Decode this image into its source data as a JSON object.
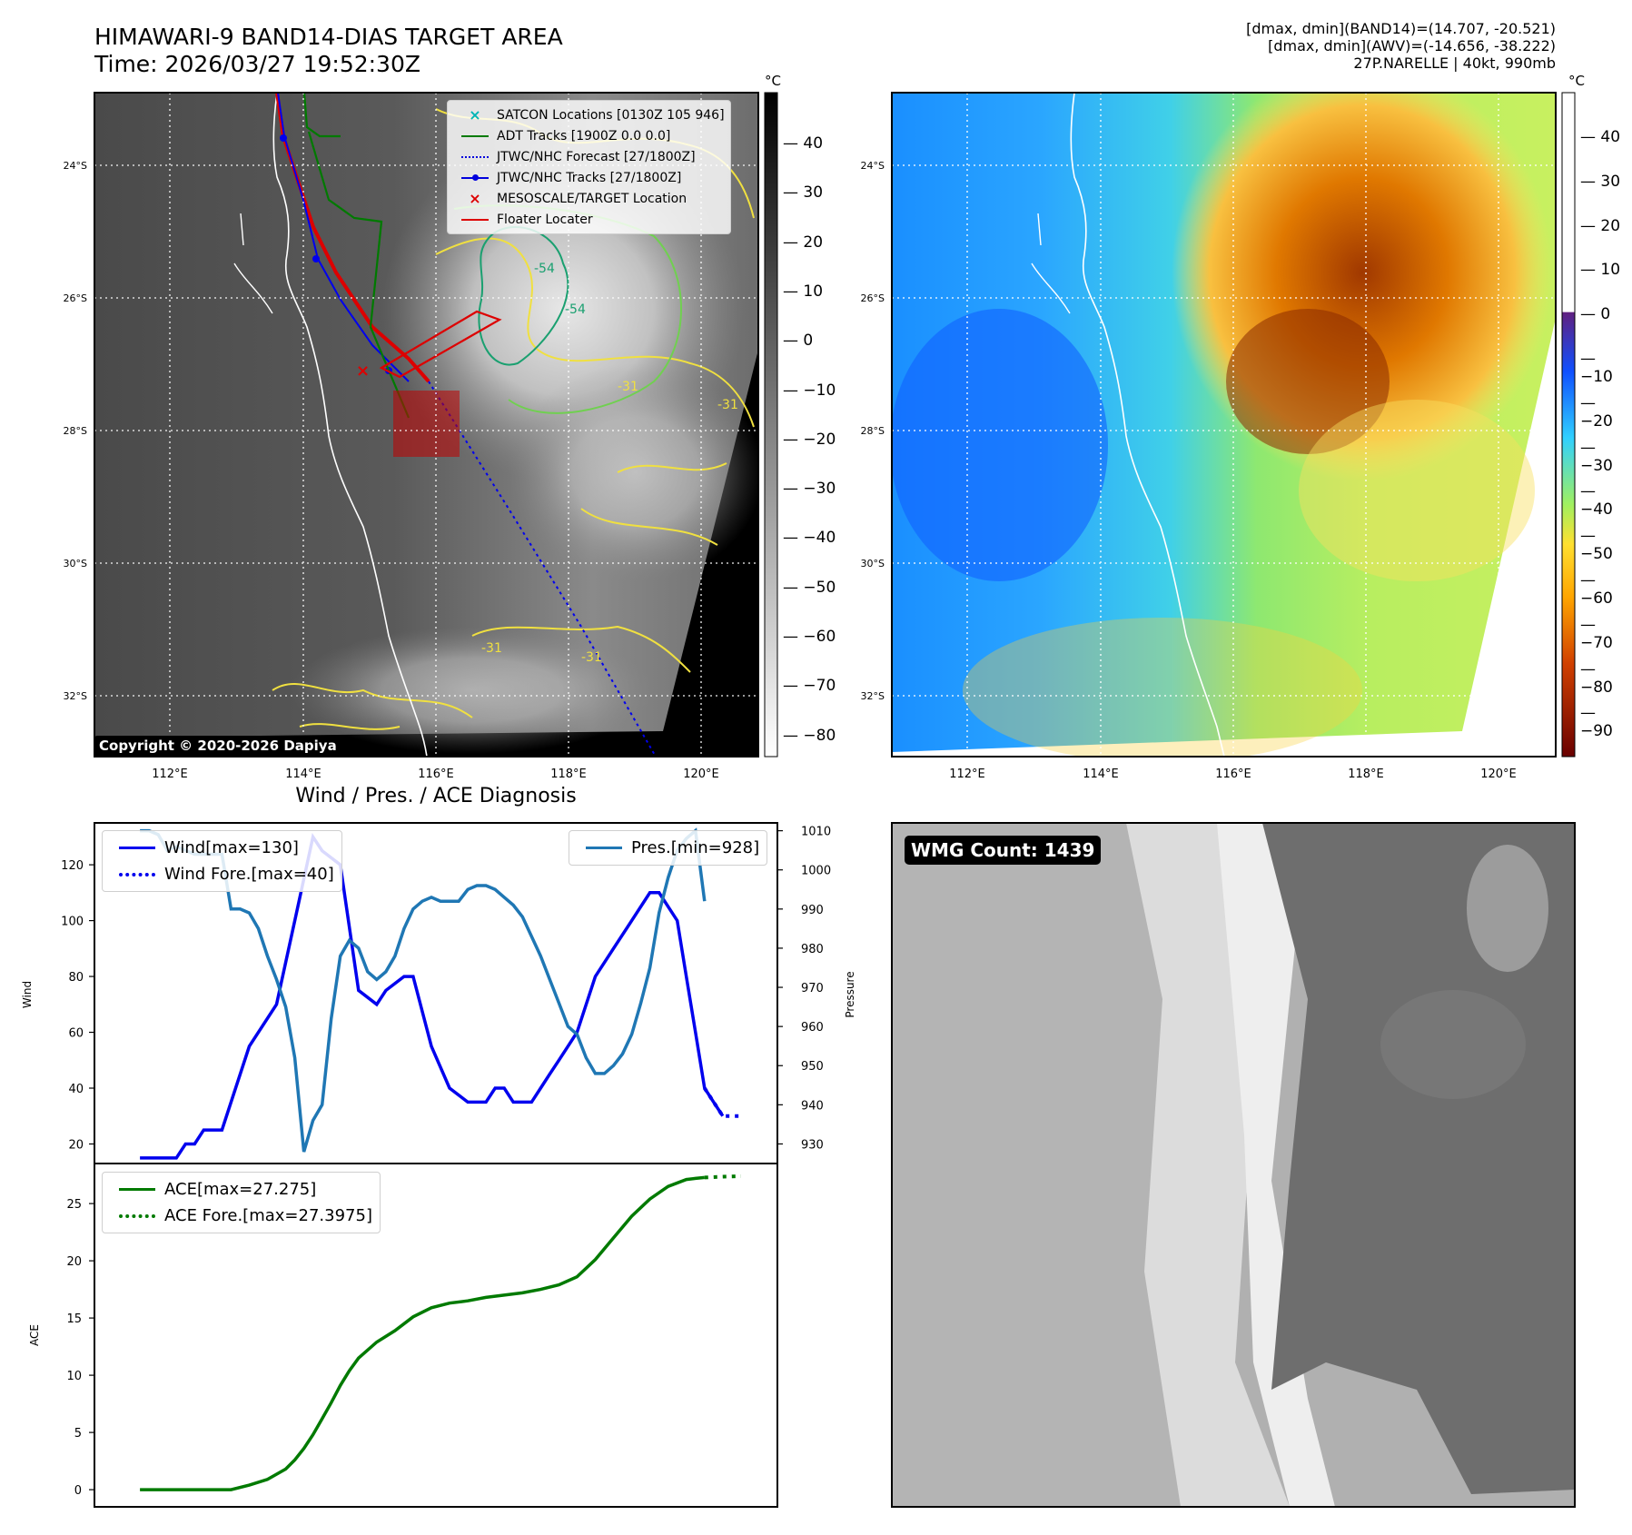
{
  "header": {
    "title_line1": "HIMAWARI-9 BAND14-DIAS TARGET AREA",
    "title_line2": "Time: 2026/03/27 19:52:30Z",
    "stats_line1": "[dmax, dmin](BAND14)=(14.707, -20.521)",
    "stats_line2": "[dmax, dmin](AWV)=(-14.656, -38.222)",
    "stats_line3": "27P.NARELLE | 40kt, 990mb"
  },
  "map_axes": {
    "lat_ticks": [
      "24°S",
      "26°S",
      "28°S",
      "30°S",
      "32°S"
    ],
    "lon_ticks": [
      "112°E",
      "114°E",
      "116°E",
      "118°E",
      "120°E"
    ]
  },
  "colorbar_ir": {
    "unit": "°C",
    "ticks": [
      "40",
      "30",
      "20",
      "10",
      "0",
      "−10",
      "−20",
      "−30",
      "−40",
      "−50",
      "−60",
      "−70",
      "−80"
    ]
  },
  "colorbar_color": {
    "unit": "°C",
    "ticks": [
      "40",
      "30",
      "20",
      "10",
      "0",
      "−10",
      "−20",
      "−30",
      "−40",
      "−50",
      "−60",
      "−70",
      "−80",
      "−90"
    ],
    "colors": [
      "#7a0000",
      "#b03000",
      "#e06000",
      "#ffa500",
      "#ffe030",
      "#90ee60",
      "#30d0ff",
      "#1060ff",
      "#6030a0"
    ]
  },
  "legend_map": {
    "items": [
      {
        "label": "SATCON Locations [0130Z 105 946]",
        "color": "#00b5b5",
        "marker": "x"
      },
      {
        "label": "ADT Tracks [1900Z 0.0 0.0]",
        "color": "#007a00",
        "marker": "line"
      },
      {
        "label": "JTWC/NHC Forecast [27/1800Z]",
        "color": "#0000dd",
        "marker": "dotted"
      },
      {
        "label": "JTWC/NHC Tracks [27/1800Z]",
        "color": "#0000dd",
        "marker": "line-dot"
      },
      {
        "label": "MESOSCALE/TARGET Location",
        "color": "#dd0000",
        "marker": "x"
      },
      {
        "label": "Floater Locater",
        "color": "#dd0000",
        "marker": "line"
      }
    ]
  },
  "copyright": "Copyright © 2020-2026 Dapiya",
  "contour_labels": [
    "-54",
    "-54",
    "-31",
    "-31",
    "-31",
    "-31"
  ],
  "diag": {
    "title": "Wind / Pres. / ACE Diagnosis",
    "wind_ylabel": "Wind",
    "pres_ylabel": "Pressure",
    "ace_ylabel": "ACE",
    "legend_wind": "Wind[max=130]",
    "legend_wind_fore": "Wind Fore.[max=40]",
    "legend_pres": "Pres.[min=928]",
    "legend_ace": "ACE[max=27.275]",
    "legend_ace_fore": "ACE Fore.[max=27.3975]"
  },
  "chart_data": [
    {
      "type": "line",
      "title": "Wind / Pres. / ACE Diagnosis",
      "ylabel": "Wind",
      "y2label": "Pressure",
      "ylim": [
        13,
        135
      ],
      "y2lim": [
        925,
        1012
      ],
      "yticks": [
        20,
        40,
        60,
        80,
        100,
        120
      ],
      "y2ticks": [
        930,
        940,
        950,
        960,
        970,
        980,
        990,
        1000,
        1010
      ],
      "series": [
        {
          "name": "Wind[max=130]",
          "axis": "left",
          "color": "#0000ee",
          "style": "solid",
          "x": [
            0,
            2,
            4,
            5,
            6,
            7,
            8,
            9,
            10,
            12,
            15,
            17,
            19,
            20,
            22,
            24,
            26,
            27,
            29,
            30,
            32,
            34,
            36,
            38,
            39,
            40,
            41,
            42,
            43,
            44,
            45,
            46,
            47,
            48,
            50,
            52,
            54,
            56,
            57,
            58,
            59,
            60,
            61,
            62,
            63,
            64
          ],
          "values": [
            15,
            15,
            15,
            20,
            20,
            25,
            25,
            25,
            35,
            55,
            70,
            100,
            130,
            125,
            120,
            75,
            70,
            75,
            80,
            80,
            55,
            40,
            35,
            35,
            40,
            40,
            35,
            35,
            35,
            40,
            45,
            50,
            55,
            60,
            80,
            90,
            100,
            110,
            110,
            105,
            100,
            80,
            60,
            40,
            35,
            30
          ]
        },
        {
          "name": "Wind Fore.[max=40]",
          "axis": "left",
          "color": "#0000ee",
          "style": "dotted",
          "x": [
            62,
            63,
            64,
            65,
            66
          ],
          "values": [
            40,
            35,
            30,
            30,
            30
          ]
        },
        {
          "name": "Pres.[min=928]",
          "axis": "right",
          "color": "#1f77b4",
          "style": "solid",
          "x": [
            0,
            1,
            2,
            3,
            4,
            5,
            6,
            7,
            8,
            9,
            10,
            11,
            12,
            13,
            14,
            15,
            16,
            17,
            18,
            19,
            20,
            21,
            22,
            23,
            24,
            25,
            26,
            27,
            28,
            29,
            30,
            31,
            32,
            33,
            34,
            35,
            36,
            37,
            38,
            39,
            40,
            41,
            42,
            43,
            44,
            45,
            46,
            47,
            48,
            49,
            50,
            51,
            52,
            53,
            54,
            55,
            56,
            57,
            58,
            59,
            60,
            61,
            62
          ],
          "values": [
            1010,
            1010,
            1009,
            1005,
            1006,
            1005,
            1004,
            1004,
            1004,
            1004,
            990,
            990,
            989,
            985,
            978,
            972,
            965,
            952,
            928,
            936,
            940,
            962,
            978,
            982,
            980,
            974,
            972,
            974,
            978,
            985,
            990,
            992,
            993,
            992,
            992,
            992,
            995,
            996,
            996,
            995,
            993,
            991,
            988,
            983,
            978,
            972,
            966,
            960,
            958,
            952,
            948,
            948,
            950,
            953,
            958,
            966,
            975,
            989,
            998,
            1005,
            1008,
            1010,
            992
          ]
        }
      ]
    },
    {
      "type": "line",
      "ylabel": "ACE",
      "ylim": [
        -1.5,
        28.5
      ],
      "yticks": [
        0,
        5,
        10,
        15,
        20,
        25
      ],
      "series": [
        {
          "name": "ACE[max=27.275]",
          "color": "#007a00",
          "style": "solid",
          "x": [
            0,
            4,
            8,
            10,
            12,
            14,
            16,
            17,
            18,
            19,
            20,
            21,
            22,
            23,
            24,
            26,
            28,
            30,
            32,
            34,
            36,
            38,
            40,
            42,
            44,
            46,
            48,
            50,
            52,
            54,
            56,
            58,
            60,
            61,
            62
          ],
          "values": [
            0,
            0,
            0,
            0,
            0.4,
            0.9,
            1.8,
            2.6,
            3.6,
            4.8,
            6.2,
            7.6,
            9.1,
            10.4,
            11.5,
            12.9,
            13.9,
            15.1,
            15.9,
            16.3,
            16.5,
            16.8,
            17,
            17.2,
            17.5,
            17.9,
            18.6,
            20.1,
            22,
            23.9,
            25.4,
            26.5,
            27.1,
            27.2,
            27.275
          ]
        },
        {
          "name": "ACE Fore.[max=27.3975]",
          "color": "#007a00",
          "style": "dotted",
          "x": [
            62,
            64,
            66
          ],
          "values": [
            27.275,
            27.35,
            27.3975
          ]
        }
      ]
    }
  ],
  "wmg": {
    "label": "WMG Count: 1439"
  }
}
